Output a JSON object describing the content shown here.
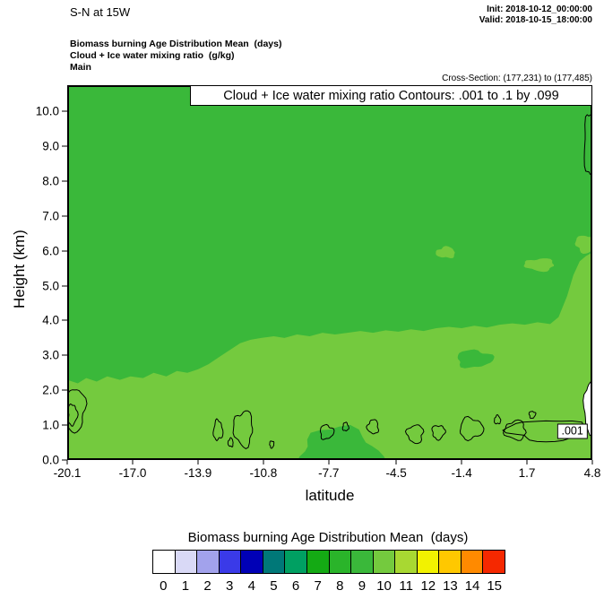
{
  "header": {
    "title": "S-N at 15W",
    "init_label": "Init: 2018-10-12_00:00:00",
    "valid_label": "Valid: 2018-10-15_18:00:00"
  },
  "meta": {
    "line1": "Biomass burning Age Distribution Mean  (days)",
    "line2": "Cloud + Ice water mixing ratio  (g/kg)",
    "line3": "Main",
    "cross_section": "Cross-Section: (177,231) to (177,485)"
  },
  "plot": {
    "banner": "Cloud + Ice water mixing ratio Contours: .001 to .1 by .099",
    "xlabel": "latitude",
    "ylabel": "Height (km)",
    "contour_label": ".001"
  },
  "colors": {
    "age9_green": "#3ab83a",
    "age10_green": "#74ca3e",
    "contour": "#000000",
    "background": "#ffffff"
  },
  "colorbar": {
    "title": "Biomass burning Age Distribution Mean  (days)",
    "labels": [
      "0",
      "1",
      "2",
      "3",
      "4",
      "5",
      "6",
      "7",
      "8",
      "9",
      "10",
      "11",
      "12",
      "13",
      "14",
      "15"
    ],
    "colors": [
      "#ffffff",
      "#d9d9f6",
      "#a2a2ec",
      "#3a3ae8",
      "#0000b6",
      "#007878",
      "#00a062",
      "#14aa14",
      "#2ab42a",
      "#3ab83a",
      "#74ca3e",
      "#a8d832",
      "#f2f200",
      "#ffc800",
      "#ff8a00",
      "#f52800"
    ]
  },
  "chart_data": {
    "type": "heatmap",
    "title": "S-N at 15W — Biomass burning Age Distribution Mean (days) with Cloud + Ice water mixing ratio contours",
    "xlabel": "latitude",
    "ylabel": "Height (km)",
    "xlim": [
      -20.1,
      4.8
    ],
    "ylim": [
      0,
      10.75
    ],
    "x_ticks": [
      "-20.1",
      "-17.0",
      "-13.9",
      "-10.8",
      "-7.7",
      "-4.5",
      "-1.4",
      "1.7",
      "4.8"
    ],
    "y_ticks": [
      "0.0",
      "1.0",
      "2.0",
      "3.0",
      "4.0",
      "5.0",
      "6.0",
      "7.0",
      "8.0",
      "9.0",
      "10.0"
    ],
    "legend_range": [
      0,
      15
    ],
    "field_summary": {
      "upper_region_value_days": 9,
      "lower_region_value_days": 10,
      "white_pocket_value_days": 0
    },
    "age10_top_boundary": [
      [
        -20.1,
        2.3
      ],
      [
        -19.6,
        2.2
      ],
      [
        -19.2,
        2.35
      ],
      [
        -18.7,
        2.25
      ],
      [
        -18.2,
        2.4
      ],
      [
        -17.6,
        2.3
      ],
      [
        -17.1,
        2.4
      ],
      [
        -16.5,
        2.35
      ],
      [
        -16.0,
        2.5
      ],
      [
        -15.4,
        2.4
      ],
      [
        -14.9,
        2.55
      ],
      [
        -14.4,
        2.5
      ],
      [
        -13.9,
        2.6
      ],
      [
        -13.4,
        2.75
      ],
      [
        -12.9,
        2.95
      ],
      [
        -12.4,
        3.15
      ],
      [
        -11.9,
        3.35
      ],
      [
        -11.4,
        3.45
      ],
      [
        -10.9,
        3.5
      ],
      [
        -10.3,
        3.55
      ],
      [
        -9.8,
        3.5
      ],
      [
        -9.2,
        3.6
      ],
      [
        -8.6,
        3.55
      ],
      [
        -8.0,
        3.65
      ],
      [
        -7.4,
        3.6
      ],
      [
        -6.8,
        3.65
      ],
      [
        -6.2,
        3.7
      ],
      [
        -5.6,
        3.65
      ],
      [
        -5.0,
        3.72
      ],
      [
        -4.4,
        3.68
      ],
      [
        -3.8,
        3.75
      ],
      [
        -3.2,
        3.7
      ],
      [
        -2.6,
        3.78
      ],
      [
        -2.0,
        3.82
      ],
      [
        -1.4,
        3.78
      ],
      [
        -0.8,
        3.85
      ],
      [
        -0.2,
        3.8
      ],
      [
        0.4,
        3.88
      ],
      [
        1.0,
        3.92
      ],
      [
        1.6,
        3.88
      ],
      [
        2.2,
        3.95
      ],
      [
        2.8,
        3.9
      ],
      [
        3.2,
        4.1
      ],
      [
        3.6,
        4.7
      ],
      [
        3.9,
        5.3
      ],
      [
        4.2,
        5.7
      ],
      [
        4.5,
        5.85
      ],
      [
        4.8,
        5.95
      ]
    ],
    "patches": [
      {
        "value": 10,
        "cx": -2.15,
        "cy": 5.95,
        "rx": 0.45,
        "ry": 0.16
      },
      {
        "value": 10,
        "cx": 2.3,
        "cy": 5.6,
        "rx": 0.7,
        "ry": 0.18
      },
      {
        "value": 10,
        "cx": 4.5,
        "cy": 6.2,
        "rx": 0.5,
        "ry": 0.25
      },
      {
        "value": 9,
        "cx": -0.8,
        "cy": 2.9,
        "rx": 0.85,
        "ry": 0.25
      },
      {
        "value": 9,
        "cx": -7.2,
        "cy": 0.1,
        "rx": 2.0,
        "ry": 0.8
      }
    ],
    "white_region": {
      "cx": 4.68,
      "cy": 1.5,
      "rx": 0.26,
      "ry": 0.75
    },
    "cloud_contours": {
      "variable": "Cloud + Ice water mixing ratio (g/kg)",
      "levels": [
        0.001,
        0.1
      ],
      "interval": 0.099,
      "label": ".001",
      "label_pos": [
        3.85,
        0.82
      ],
      "loops": [
        {
          "cx": -19.75,
          "cy": 1.45,
          "rx": 0.5,
          "ry": 0.62
        },
        {
          "cx": -19.85,
          "cy": 1.3,
          "rx": 0.22,
          "ry": 0.3
        },
        {
          "cx": -12.95,
          "cy": 0.85,
          "rx": 0.22,
          "ry": 0.28
        },
        {
          "cx": -12.35,
          "cy": 0.5,
          "rx": 0.12,
          "ry": 0.12
        },
        {
          "cx": -11.75,
          "cy": 0.9,
          "rx": 0.45,
          "ry": 0.5
        },
        {
          "cx": -10.4,
          "cy": 0.45,
          "rx": 0.1,
          "ry": 0.1
        },
        {
          "cx": -7.8,
          "cy": 0.8,
          "rx": 0.32,
          "ry": 0.2
        },
        {
          "cx": -6.9,
          "cy": 0.95,
          "rx": 0.14,
          "ry": 0.12
        },
        {
          "cx": -5.6,
          "cy": 0.95,
          "rx": 0.26,
          "ry": 0.2
        },
        {
          "cx": -3.6,
          "cy": 0.75,
          "rx": 0.38,
          "ry": 0.26
        },
        {
          "cx": -2.5,
          "cy": 0.8,
          "rx": 0.3,
          "ry": 0.2
        },
        {
          "cx": -0.95,
          "cy": 0.9,
          "rx": 0.55,
          "ry": 0.3
        },
        {
          "cx": 0.3,
          "cy": 1.15,
          "rx": 0.15,
          "ry": 0.12
        },
        {
          "cx": 1.15,
          "cy": 0.85,
          "rx": 0.5,
          "ry": 0.27
        },
        {
          "cx": 2.6,
          "cy": 0.85,
          "rx": 1.75,
          "ry": 0.3
        },
        {
          "cx": 1.95,
          "cy": 1.3,
          "rx": 0.15,
          "ry": 0.1
        },
        {
          "cx": 4.7,
          "cy": 9.05,
          "rx": 0.3,
          "ry": 0.85
        }
      ]
    }
  }
}
